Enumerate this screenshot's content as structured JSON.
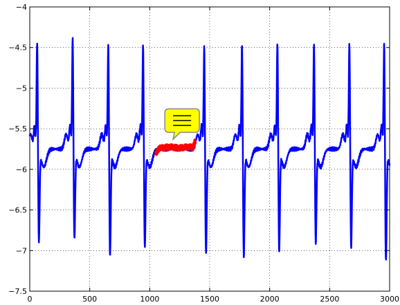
{
  "chart_data": {
    "type": "line",
    "title": "",
    "xlabel": "",
    "ylabel": "",
    "xlim": [
      0,
      3000
    ],
    "ylim": [
      -7.5,
      -4
    ],
    "grid": true,
    "x_ticks": [
      0,
      500,
      1000,
      1500,
      2000,
      2500,
      3000
    ],
    "y_ticks": [
      -4,
      -4.5,
      -5,
      -5.5,
      -6,
      -6.5,
      -7,
      -7.5
    ],
    "x_tick_labels": [
      "0",
      "500",
      "1000",
      "1500",
      "2000",
      "2500",
      "3000"
    ],
    "y_tick_labels": [
      "−4",
      "−4.5",
      "−5",
      "−5.5",
      "−6",
      "−6.5",
      "−7",
      "−7.5"
    ],
    "colors": {
      "signal": "#0000ff",
      "highlight": "#ff0000",
      "callout_fill": "#ffff00",
      "grid": "#000000"
    },
    "signal": {
      "baseline": -5.75,
      "beat_centers": [
        62,
        358,
        655,
        945,
        1455,
        1770,
        2065,
        2370,
        2665,
        2955
      ],
      "beat_peaks": [
        -4.35,
        -4.32,
        -4.37,
        -4.4,
        -4.42,
        -4.38,
        -4.36,
        -4.38,
        -4.37,
        -4.38
      ],
      "beat_troughs": [
        -6.97,
        -6.95,
        -7.15,
        -7.05,
        -7.12,
        -7.17,
        -7.1,
        -7.0,
        -7.05,
        -7.22
      ]
    },
    "highlight_segment": {
      "x_start": 1050,
      "x_end": 1380,
      "y_level": -5.73
    },
    "annotation": {
      "icon": "speech-bubble-icon",
      "x": 1270,
      "y": -5.4
    }
  }
}
